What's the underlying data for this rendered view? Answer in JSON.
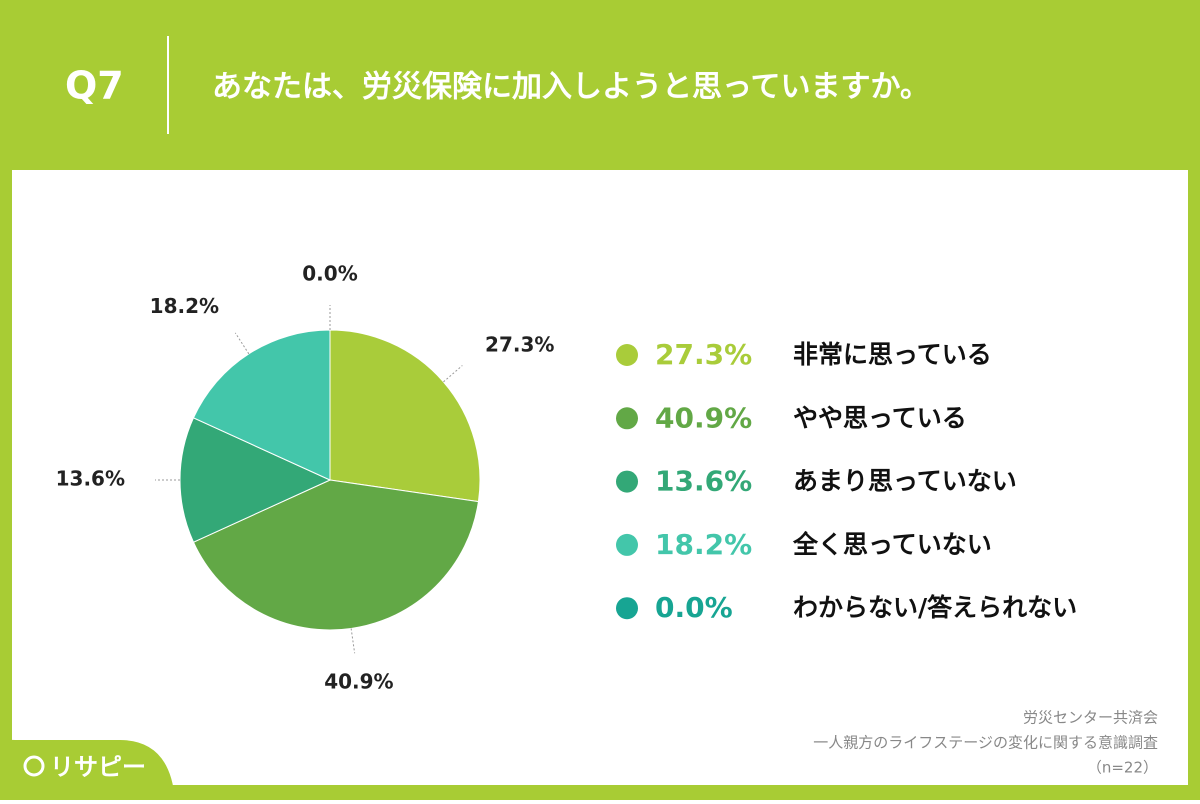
{
  "chart_data": {
    "type": "pie",
    "question_number": "Q7",
    "title": "あなたは、労災保険に加入しようと思っていますか。",
    "categories": [
      "非常に思っている",
      "やや思っている",
      "あまり思っていない",
      "全く思っていない",
      "わからない/答えられない"
    ],
    "values": [
      27.3,
      40.9,
      13.6,
      18.2,
      0.0
    ],
    "value_labels": [
      "27.3%",
      "40.9%",
      "13.6%",
      "18.2%",
      "0.0%"
    ],
    "colors": [
      "#a9cc3a",
      "#62a846",
      "#33a877",
      "#43c6aa",
      "#17a593"
    ],
    "notes": [
      "労災センター共済会",
      "一人親方のライフステージの変化に関する意識調査",
      "（n=22）"
    ],
    "logo": "リサピー"
  }
}
